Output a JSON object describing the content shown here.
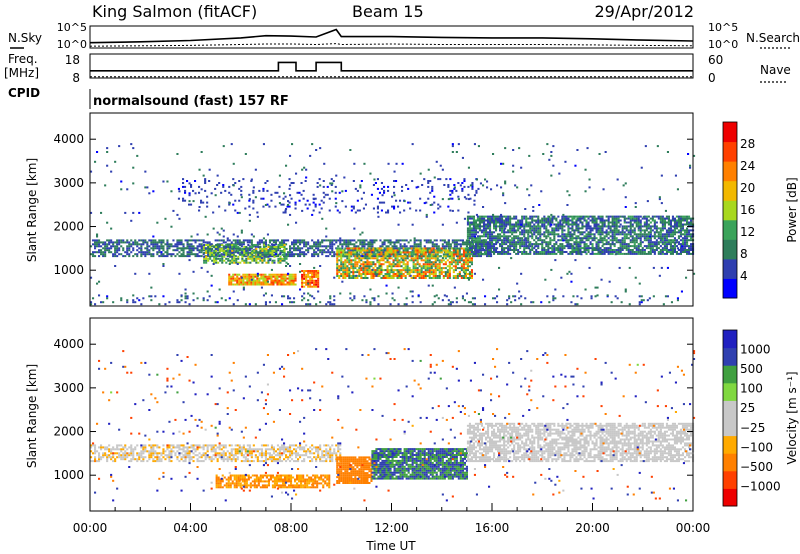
{
  "header": {
    "station": "King Salmon (fitACF)",
    "beam": "Beam 15",
    "date": "29/Apr/2012"
  },
  "colors": {
    "power": [
      "#0000ff",
      "#2f3fb0",
      "#2e7d5b",
      "#3aa35a",
      "#a8d81e",
      "#f2b800",
      "#ff8000",
      "#ff4000",
      "#ee0000"
    ],
    "velocity": [
      "#ee0000",
      "#ff4000",
      "#ff8000",
      "#ffaa00",
      "#c8c8c8",
      "#c8c8c8",
      "#80d840",
      "#40a040",
      "#3040b0",
      "#2020c0"
    ],
    "ground": "#c8c8c8"
  },
  "chart_data": [
    {
      "type": "line",
      "name": "noise-panel",
      "left_label_top": "N.Sky",
      "left_ticks": [
        "10^5",
        "10^0"
      ],
      "right_label": "N.Search",
      "right_ticks": [
        "10^5",
        "10^0"
      ],
      "x": [
        0,
        2,
        4,
        6,
        7,
        8,
        9,
        9.8,
        10,
        12,
        14,
        16,
        18,
        20,
        22,
        24
      ],
      "series": [
        {
          "values": [
            1.2,
            1.4,
            1.7,
            2.3,
            2.8,
            2.7,
            2.5,
            4.2,
            2.6,
            2.6,
            2.4,
            2.3,
            2.3,
            2.1,
            1.8,
            1.6
          ]
        },
        {
          "values": [
            0.4,
            0.5,
            0.6,
            0.8,
            0.9,
            0.9,
            0.8,
            1.0,
            0.8,
            0.9,
            0.8,
            0.8,
            0.8,
            0.7,
            0.6,
            0.5
          ]
        }
      ]
    },
    {
      "type": "line",
      "name": "freq-panel",
      "left_label": "Freq.",
      "left_unit": "[MHz]",
      "left_ticks": [
        "18",
        "8"
      ],
      "ylim_left": [
        8,
        18
      ],
      "right_label": "Nave",
      "right_ticks": [
        "60",
        "0"
      ],
      "ylim_right": [
        0,
        60
      ],
      "freq": {
        "x": [
          0,
          7.5,
          7.5,
          8.2,
          8.2,
          9.0,
          9.0,
          10.0,
          10.0,
          24
        ],
        "y": [
          11,
          11,
          14.5,
          14.5,
          11,
          11,
          14.5,
          14.5,
          11,
          11
        ]
      },
      "nave": {
        "x": [
          0,
          24
        ],
        "y": [
          3,
          3
        ]
      }
    },
    {
      "type": "heatmap",
      "name": "power-panel",
      "cpid_label": "CPID",
      "cpid_text": "normalsound (fast) 157 RF",
      "ylabel": "Slant Range [km]",
      "ylim": [
        180,
        4600
      ],
      "yticks": [
        "4000",
        "3000",
        "2000",
        "1000"
      ],
      "colorbar_label": "Power [dB]",
      "colorbar_ticks": [
        "28",
        "24",
        "20",
        "16",
        "12",
        "8",
        "4"
      ],
      "bands": [
        {
          "t0": 0.0,
          "t1": 16.0,
          "r0": 1300,
          "r1": 1700,
          "v0": 4,
          "v1": 10,
          "d": 0.65
        },
        {
          "t0": 4.5,
          "t1": 7.8,
          "r0": 1150,
          "r1": 1600,
          "v0": 6,
          "v1": 18,
          "d": 0.7
        },
        {
          "t0": 5.5,
          "t1": 8.2,
          "r0": 650,
          "r1": 900,
          "v0": 14,
          "v1": 28,
          "d": 0.9
        },
        {
          "t0": 8.4,
          "t1": 9.1,
          "r0": 600,
          "r1": 1000,
          "v0": 18,
          "v1": 30,
          "d": 0.9
        },
        {
          "t0": 9.8,
          "t1": 15.2,
          "r0": 800,
          "r1": 1500,
          "v0": 8,
          "v1": 26,
          "d": 0.78
        },
        {
          "t0": 15.0,
          "t1": 24.0,
          "r0": 1350,
          "r1": 2250,
          "v0": 4,
          "v1": 12,
          "d": 0.75
        },
        {
          "t0": 3.5,
          "t1": 15.5,
          "r0": 2300,
          "r1": 3100,
          "v0": 3,
          "v1": 6,
          "d": 0.1
        },
        {
          "t0": 0.0,
          "t1": 24.0,
          "r0": 200,
          "r1": 400,
          "v0": 3,
          "v1": 10,
          "d": 0.12
        },
        {
          "t0": 0.0,
          "t1": 24.0,
          "r0": 400,
          "r1": 3900,
          "v0": 3,
          "v1": 10,
          "d": 0.02
        }
      ]
    },
    {
      "type": "heatmap",
      "name": "velocity-panel",
      "ylabel": "Slant Range [km]",
      "ylim": [
        180,
        4600
      ],
      "yticks": [
        "4000",
        "3000",
        "2000",
        "1000"
      ],
      "colorbar_label": "Velocity [m s⁻¹]",
      "colorbar_ticks": [
        "1000",
        "500",
        "100",
        "25",
        "−25",
        "−100",
        "−500",
        "−1000"
      ],
      "xlabel": "Time UT",
      "xticks": [
        "00:00",
        "04:00",
        "08:00",
        "12:00",
        "16:00",
        "20:00",
        "00:00"
      ],
      "xlim": [
        0,
        24
      ],
      "bands": [
        {
          "t0": 0.0,
          "t1": 10.0,
          "r0": 1300,
          "r1": 1700,
          "v0": -80,
          "v1": 20,
          "d": 0.6
        },
        {
          "t0": 5.0,
          "t1": 9.5,
          "r0": 700,
          "r1": 1000,
          "v0": -150,
          "v1": -50,
          "d": 0.75
        },
        {
          "t0": 9.8,
          "t1": 11.2,
          "r0": 800,
          "r1": 1400,
          "v0": -160,
          "v1": -120,
          "d": 0.9
        },
        {
          "t0": 11.2,
          "t1": 15.0,
          "r0": 900,
          "r1": 1600,
          "v0": 60,
          "v1": 140,
          "d": 0.9
        },
        {
          "t0": 15.0,
          "t1": 24.0,
          "r0": 1300,
          "r1": 2200,
          "v0": -20,
          "v1": 20,
          "d": 0.7
        },
        {
          "t0": 0.0,
          "t1": 24.0,
          "r0": 400,
          "r1": 3900,
          "v0": -900,
          "v1": 900,
          "d": 0.022
        }
      ]
    }
  ]
}
